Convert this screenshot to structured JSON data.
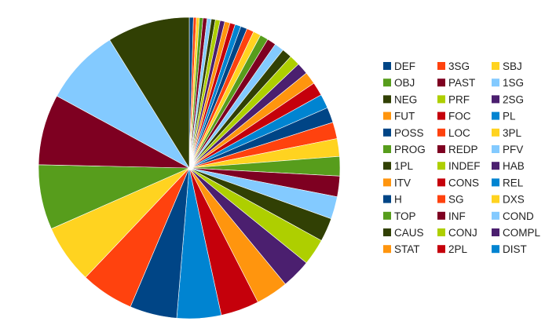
{
  "chart_data": {
    "type": "pie",
    "title": "",
    "legend_position": "right",
    "slices": [
      {
        "label": "DEF",
        "value": 0.7,
        "color": "#004586"
      },
      {
        "label": "3SG",
        "value": 0.5,
        "color": "#ff420e"
      },
      {
        "label": "SBJ",
        "value": 0.5,
        "color": "#ffd320"
      },
      {
        "label": "OBJ",
        "value": 0.6,
        "color": "#579d1c"
      },
      {
        "label": "PAST",
        "value": 0.7,
        "color": "#7e0021"
      },
      {
        "label": "1SG",
        "value": 0.7,
        "color": "#83caff"
      },
      {
        "label": "NEG",
        "value": 0.7,
        "color": "#314004"
      },
      {
        "label": "PRF",
        "value": 0.8,
        "color": "#aecf00"
      },
      {
        "label": "2SG",
        "value": 0.8,
        "color": "#4b1f6f"
      },
      {
        "label": "FUT",
        "value": 0.9,
        "color": "#ff950e"
      },
      {
        "label": "FOC",
        "value": 0.9,
        "color": "#c5000b"
      },
      {
        "label": "PL",
        "value": 1.0,
        "color": "#0084d1"
      },
      {
        "label": "POSS",
        "value": 1.1,
        "color": "#004586"
      },
      {
        "label": "LOC",
        "value": 1.2,
        "color": "#ff420e"
      },
      {
        "label": "3PL",
        "value": 1.3,
        "color": "#ffd320"
      },
      {
        "label": "PROG",
        "value": 1.4,
        "color": "#579d1c"
      },
      {
        "label": "REDP",
        "value": 1.5,
        "color": "#7e0021"
      },
      {
        "label": "PFV",
        "value": 1.6,
        "color": "#83caff"
      },
      {
        "label": "1PL",
        "value": 1.7,
        "color": "#314004"
      },
      {
        "label": "INDEF",
        "value": 1.8,
        "color": "#aecf00"
      },
      {
        "label": "HAB",
        "value": 2.0,
        "color": "#4b1f6f"
      },
      {
        "label": "ITV",
        "value": 2.1,
        "color": "#ff950e"
      },
      {
        "label": "CONS",
        "value": 2.3,
        "color": "#c5000b"
      },
      {
        "label": "REL",
        "value": 2.4,
        "color": "#0084d1"
      },
      {
        "label": "H",
        "value": 2.6,
        "color": "#004586"
      },
      {
        "label": "SG",
        "value": 2.8,
        "color": "#ff420e"
      },
      {
        "label": "DXS",
        "value": 3.0,
        "color": "#ffd320"
      },
      {
        "label": "TOP",
        "value": 3.3,
        "color": "#579d1c"
      },
      {
        "label": "INF",
        "value": 3.5,
        "color": "#7e0021"
      },
      {
        "label": "COND",
        "value": 3.8,
        "color": "#83caff"
      },
      {
        "label": "CAUS",
        "value": 4.0,
        "color": "#314004"
      },
      {
        "label": "CONJ",
        "value": 4.5,
        "color": "#aecf00"
      },
      {
        "label": "COMPL",
        "value": 5.0,
        "color": "#4b1f6f"
      },
      {
        "label": "STAT",
        "value": 5.5,
        "color": "#ff950e"
      },
      {
        "label": "2PL",
        "value": 6.5,
        "color": "#c5000b"
      },
      {
        "label": "DIST",
        "value": 7.5,
        "color": "#0084d1"
      }
    ],
    "extra_slices_unlabeled": [
      {
        "value": 8.0,
        "color": "#004586"
      },
      {
        "value": 9.0,
        "color": "#ff420e"
      },
      {
        "value": 10.0,
        "color": "#ffd320"
      },
      {
        "value": 11.0,
        "color": "#579d1c"
      },
      {
        "value": 12.0,
        "color": "#7e0021"
      },
      {
        "value": 13.0,
        "color": "#83caff"
      },
      {
        "value": 14.0,
        "color": "#314004"
      }
    ]
  }
}
